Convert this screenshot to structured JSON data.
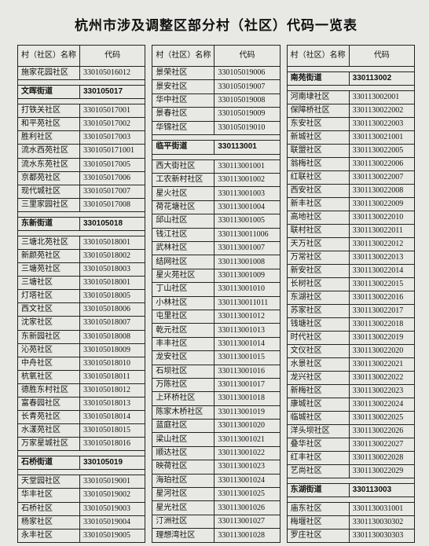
{
  "title": "杭州市涉及调整区部分村（社区）代码一览表",
  "header": {
    "name": "村（社区）名称",
    "code": "代码"
  },
  "columns": [
    {
      "rows": [
        {
          "name": "施家花园社区",
          "code": "330105016012"
        },
        {
          "spacer": true
        },
        {
          "name": "文晖街道",
          "code": "330105017",
          "bold": true
        },
        {
          "spacer": true
        },
        {
          "name": "打铁关社区",
          "code": "330105017001"
        },
        {
          "name": "和平苑社区",
          "code": "330105017002"
        },
        {
          "name": "胜利社区",
          "code": "330105017003"
        },
        {
          "name": "流水西苑社区",
          "code": "3301050171001"
        },
        {
          "name": "流水东苑社区",
          "code": "330105017005"
        },
        {
          "name": "京都苑社区",
          "code": "330105017006"
        },
        {
          "name": "现代城社区",
          "code": "330105017007"
        },
        {
          "name": "三里家园社区",
          "code": "330105017008"
        },
        {
          "spacer": true
        },
        {
          "name": "东新街道",
          "code": "330105018",
          "bold": true
        },
        {
          "spacer": true
        },
        {
          "name": "三塘北苑社区",
          "code": "330105018001"
        },
        {
          "name": "新颜苑社区",
          "code": "330105018002"
        },
        {
          "name": "三塘苑社区",
          "code": "330105018003"
        },
        {
          "name": "三塘社区",
          "code": "330105018001"
        },
        {
          "name": "灯塔社区",
          "code": "330105018005"
        },
        {
          "name": "西文社区",
          "code": "330105018006"
        },
        {
          "name": "沈家社区",
          "code": "330105018007"
        },
        {
          "name": "东新园社区",
          "code": "330105018008"
        },
        {
          "name": "沁苑社区",
          "code": "330105018009"
        },
        {
          "name": "中舟社区",
          "code": "330105018010"
        },
        {
          "name": "杭氧社区",
          "code": "330105018011"
        },
        {
          "name": "德胜东村社区",
          "code": "330105018012"
        },
        {
          "name": "富春园社区",
          "code": "330105018013"
        },
        {
          "name": "长青苑社区",
          "code": "330105018014"
        },
        {
          "name": "水漾苑社区",
          "code": "330105018015"
        },
        {
          "name": "万家星城社区",
          "code": "330105018016"
        },
        {
          "spacer": true
        },
        {
          "name": "石桥街道",
          "code": "330105019",
          "bold": true
        },
        {
          "spacer": true
        },
        {
          "name": "天堂园社区",
          "code": "330105019001"
        },
        {
          "name": "华丰社区",
          "code": "330105019002"
        },
        {
          "name": "石桥社区",
          "code": "330105019003"
        },
        {
          "name": "杨家社区",
          "code": "330105019004"
        },
        {
          "name": "永丰社区",
          "code": "330105019005"
        }
      ]
    },
    {
      "rows": [
        {
          "name": "景荣社区",
          "code": "330105019006"
        },
        {
          "name": "景安社区",
          "code": "330105019007"
        },
        {
          "name": "华中社区",
          "code": "330105019008"
        },
        {
          "name": "景春社区",
          "code": "330105019009"
        },
        {
          "name": "华锦社区",
          "code": "330105019010"
        },
        {
          "spacer": true
        },
        {
          "name": "临平街道",
          "code": "330113001",
          "bold": true
        },
        {
          "spacer": true
        },
        {
          "name": "西大街社区",
          "code": "330113001001"
        },
        {
          "name": "工农新村社区",
          "code": "330113001002"
        },
        {
          "name": "星火社区",
          "code": "330113001003"
        },
        {
          "name": "荷花塘社区",
          "code": "330113001004"
        },
        {
          "name": "邱山社区",
          "code": "330113001005"
        },
        {
          "name": "钱江社区",
          "code": "3301130011006"
        },
        {
          "name": "武林社区",
          "code": "330113001007"
        },
        {
          "name": "结网社区",
          "code": "330113001008"
        },
        {
          "name": "星火苑社区",
          "code": "330113001009"
        },
        {
          "name": "丁山社区",
          "code": "330113001010"
        },
        {
          "name": "小林社区",
          "code": "3301130011011"
        },
        {
          "name": "屯里社区",
          "code": "330113001012"
        },
        {
          "name": "乾元社区",
          "code": "330113001013"
        },
        {
          "name": "丰丰社区",
          "code": "330113001014"
        },
        {
          "name": "龙安社区",
          "code": "330113001015"
        },
        {
          "name": "石坝社区",
          "code": "330113001016"
        },
        {
          "name": "万陈社区",
          "code": "330113001017"
        },
        {
          "name": "上环桥社区",
          "code": "330113001018"
        },
        {
          "name": "陈家木桥社区",
          "code": "330113001019"
        },
        {
          "name": "蓝庭社区",
          "code": "330113001020"
        },
        {
          "name": "梁山社区",
          "code": "330113001021"
        },
        {
          "name": "顺达社区",
          "code": "330113001022"
        },
        {
          "name": "映荷社区",
          "code": "330113001023"
        },
        {
          "name": "海珀社区",
          "code": "330113001024"
        },
        {
          "name": "星河社区",
          "code": "330113001025"
        },
        {
          "name": "星光社区",
          "code": "330113001026"
        },
        {
          "name": "汀洲社区",
          "code": "330113001027"
        },
        {
          "name": "理想湾社区",
          "code": "330113001028"
        }
      ]
    },
    {
      "rows": [
        {
          "spacer": true
        },
        {
          "name": "南苑街道",
          "code": "330113002",
          "bold": true
        },
        {
          "spacer": true
        },
        {
          "name": "河南埭社区",
          "code": "330113002001"
        },
        {
          "name": "保障桥社区",
          "code": "3301130022002"
        },
        {
          "name": "东安社区",
          "code": "3301130022003"
        },
        {
          "name": "新城社区",
          "code": "3301130021001"
        },
        {
          "name": "联盟社区",
          "code": "3301130022005"
        },
        {
          "name": "翁梅社区",
          "code": "3301130022006"
        },
        {
          "name": "红联社区",
          "code": "3301130022007"
        },
        {
          "name": "西安社区",
          "code": "3301130022008"
        },
        {
          "name": "新丰社区",
          "code": "3301130022009"
        },
        {
          "name": "高地社区",
          "code": "3301130022010"
        },
        {
          "name": "联村社区",
          "code": "3301130022011"
        },
        {
          "name": "天万社区",
          "code": "3301130022012"
        },
        {
          "name": "万常社区",
          "code": "3301130022013"
        },
        {
          "name": "新安社区",
          "code": "3301130022014"
        },
        {
          "name": "长树社区",
          "code": "3301130022015"
        },
        {
          "name": "东湖社区",
          "code": "3301130022016"
        },
        {
          "name": "苏家社区",
          "code": "3301130022017"
        },
        {
          "name": "钱塘社区",
          "code": "3301130022018"
        },
        {
          "name": "时代社区",
          "code": "3301130022019"
        },
        {
          "name": "文仪社区",
          "code": "3301130022020"
        },
        {
          "name": "水景社区",
          "code": "3301130022021"
        },
        {
          "name": "龙兴社区",
          "code": "3301130022022"
        },
        {
          "name": "新梅社区",
          "code": "3301130022023"
        },
        {
          "name": "康城社区",
          "code": "3301130022024"
        },
        {
          "name": "临城社区",
          "code": "3301130022025"
        },
        {
          "name": "洋头坝社区",
          "code": "3301130022026"
        },
        {
          "name": "叠华社区",
          "code": "3301130022027"
        },
        {
          "name": "红丰社区",
          "code": "3301130022028"
        },
        {
          "name": "艺尚社区",
          "code": "3301130022029"
        },
        {
          "spacer": true
        },
        {
          "name": "东湖街道",
          "code": "330113003",
          "bold": true
        },
        {
          "spacer": true
        },
        {
          "name": "庙东社区",
          "code": "3301130031001"
        },
        {
          "name": "梅堰社区",
          "code": "3301130030302"
        },
        {
          "name": "罗庄社区",
          "code": "3301130030303"
        }
      ]
    }
  ]
}
